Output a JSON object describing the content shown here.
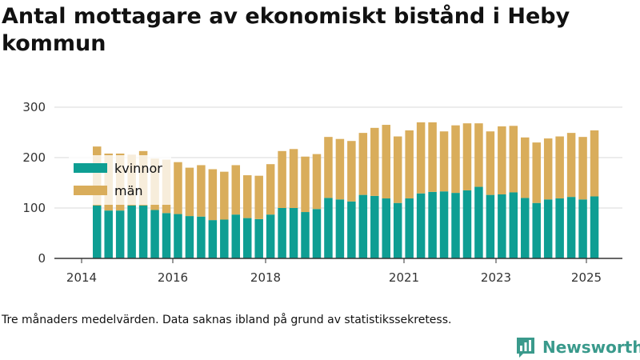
{
  "title": "Antal mottagare av ekonomiskt bistånd i Heby kommun",
  "footnote": "Tre månaders medelvärden. Data saknas ibland på grund av statistikssekretess.",
  "logo_text": "Newsworthy",
  "colors": {
    "kvinnor": "#0e9e93",
    "man": "#d9ad5b",
    "grid": "#d9d9d9",
    "axis": "#333333",
    "logo": "#3a9a8c"
  },
  "chart_data": {
    "type": "bar",
    "stacked": true,
    "title": "Antal mottagare av ekonomiskt bistånd i Heby kommun",
    "xlabel": "",
    "ylabel": "",
    "ylim": [
      0,
      300
    ],
    "yticks": [
      0,
      100,
      200,
      300
    ],
    "xticks": [
      "2014",
      "2016",
      "2018",
      "2021",
      "2023",
      "2025"
    ],
    "grid": true,
    "legend_position": "top-left",
    "series": [
      {
        "name": "kvinnor",
        "color": "#0e9e93",
        "values": [
          105,
          95,
          95,
          105,
          105,
          96,
          90,
          88,
          84,
          83,
          76,
          77,
          87,
          80,
          78,
          87,
          100,
          100,
          92,
          98,
          120,
          117,
          113,
          126,
          124,
          119,
          110,
          119,
          129,
          132,
          133,
          130,
          135,
          142,
          126,
          127,
          131,
          120,
          110,
          117,
          119,
          122,
          117,
          123
        ]
      },
      {
        "name": "män",
        "color": "#d9ad5b",
        "values": [
          117,
          113,
          113,
          100,
          108,
          102,
          106,
          103,
          96,
          102,
          101,
          95,
          98,
          85,
          86,
          100,
          113,
          117,
          110,
          109,
          121,
          120,
          120,
          123,
          135,
          146,
          132,
          135,
          141,
          138,
          119,
          134,
          133,
          126,
          126,
          135,
          132,
          120,
          120,
          121,
          123,
          127,
          124,
          131
        ]
      }
    ]
  }
}
